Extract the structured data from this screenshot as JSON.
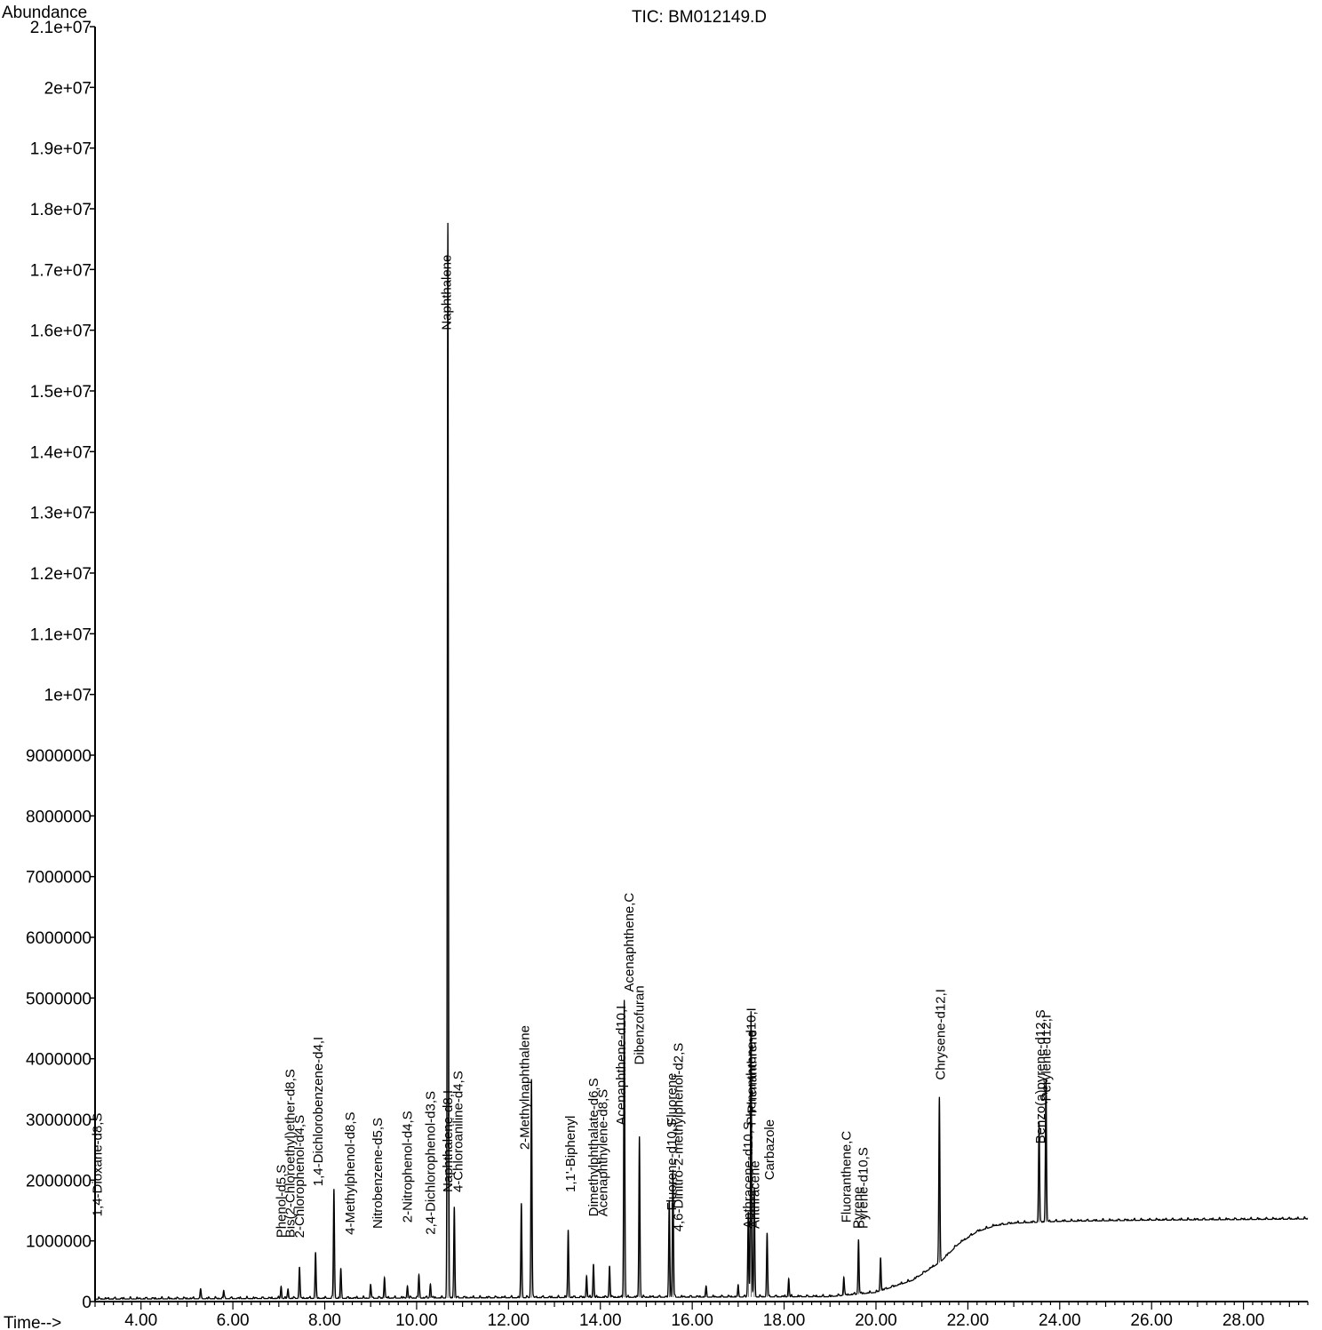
{
  "chart_data": {
    "type": "line",
    "title": "TIC: BM012149.D",
    "ylabel": "Abundance",
    "xlabel": "Time-->",
    "xlim": [
      3.0,
      29.4
    ],
    "ylim": [
      0,
      21000000
    ],
    "x_ticks": [
      4.0,
      6.0,
      8.0,
      10.0,
      12.0,
      14.0,
      16.0,
      18.0,
      20.0,
      22.0,
      24.0,
      26.0,
      28.0
    ],
    "x_tick_labels": [
      "4.00",
      "6.00",
      "8.00",
      "10.00",
      "12.00",
      "14.00",
      "16.00",
      "18.00",
      "20.00",
      "22.00",
      "24.00",
      "26.00",
      "28.00"
    ],
    "y_ticks": [
      0,
      1000000,
      2000000,
      3000000,
      4000000,
      5000000,
      6000000,
      7000000,
      8000000,
      9000000,
      10000000,
      11000000,
      12000000,
      13000000,
      14000000,
      15000000,
      16000000,
      17000000,
      18000000,
      19000000,
      20000000,
      21000000
    ],
    "y_tick_labels": [
      "0",
      "1000000",
      "2000000",
      "3000000",
      "4000000",
      "5000000",
      "6000000",
      "7000000",
      "8000000",
      "9000000",
      "1e+07",
      "1.1e+07",
      "1.2e+07",
      "1.3e+07",
      "1.4e+07",
      "1.5e+07",
      "1.6e+07",
      "1.7e+07",
      "1.8e+07",
      "1.9e+07",
      "2e+07",
      "2.1e+07"
    ],
    "grid": false,
    "baseline": [
      [
        3.0,
        40000
      ],
      [
        19.0,
        80000
      ],
      [
        20.0,
        150000
      ],
      [
        20.8,
        350000
      ],
      [
        21.4,
        650000
      ],
      [
        21.8,
        950000
      ],
      [
        22.2,
        1150000
      ],
      [
        22.6,
        1250000
      ],
      [
        23.0,
        1290000
      ],
      [
        24.0,
        1320000
      ],
      [
        26.0,
        1340000
      ],
      [
        28.0,
        1350000
      ],
      [
        29.4,
        1360000
      ]
    ],
    "series": [
      {
        "peaks": [
          {
            "rt": 5.3,
            "height": 150000
          },
          {
            "rt": 5.8,
            "height": 120000
          },
          {
            "rt": 7.05,
            "height": 200000
          },
          {
            "rt": 7.2,
            "height": 150000
          },
          {
            "rt": 7.45,
            "height": 520000
          },
          {
            "rt": 7.8,
            "height": 750000
          },
          {
            "rt": 8.2,
            "height": 1800000
          },
          {
            "rt": 8.35,
            "height": 480000
          },
          {
            "rt": 9.0,
            "height": 220000
          },
          {
            "rt": 9.3,
            "height": 340000
          },
          {
            "rt": 9.8,
            "height": 200000
          },
          {
            "rt": 10.05,
            "height": 380000
          },
          {
            "rt": 10.3,
            "height": 230000
          },
          {
            "rt": 10.68,
            "height": 17700000
          },
          {
            "rt": 10.82,
            "height": 1500000
          },
          {
            "rt": 12.28,
            "height": 1550000
          },
          {
            "rt": 12.5,
            "height": 3600000
          },
          {
            "rt": 13.3,
            "height": 1100000
          },
          {
            "rt": 13.7,
            "height": 350000
          },
          {
            "rt": 13.85,
            "height": 550000
          },
          {
            "rt": 14.2,
            "height": 520000
          },
          {
            "rt": 14.52,
            "height": 4900000
          },
          {
            "rt": 14.85,
            "height": 2650000
          },
          {
            "rt": 15.5,
            "height": 1600000
          },
          {
            "rt": 15.58,
            "height": 2100000
          },
          {
            "rt": 16.3,
            "height": 160000
          },
          {
            "rt": 17.0,
            "height": 170000
          },
          {
            "rt": 17.22,
            "height": 1400000
          },
          {
            "rt": 17.28,
            "height": 4700000
          },
          {
            "rt": 17.35,
            "height": 1800000
          },
          {
            "rt": 17.63,
            "height": 1050000
          },
          {
            "rt": 18.1,
            "height": 300000
          },
          {
            "rt": 19.3,
            "height": 300000
          },
          {
            "rt": 19.62,
            "height": 900000
          },
          {
            "rt": 20.1,
            "height": 550000
          },
          {
            "rt": 21.38,
            "height": 2700000
          },
          {
            "rt": 23.55,
            "height": 1650000
          },
          {
            "rt": 23.7,
            "height": 2350000
          }
        ]
      }
    ],
    "annotations": [
      {
        "text": "1,4-Dioxane-d8,S",
        "rt": 3.05
      },
      {
        "text": "Phenol-d5,S",
        "rt": 7.05
      },
      {
        "text": "Bis(2-Chloroethyl)ether-d8,S",
        "rt": 7.25
      },
      {
        "text": "2-Chlorophenol-d4,S",
        "rt": 7.45
      },
      {
        "text": "1,4-Dichlorobenzene-d4,I",
        "rt": 7.85
      },
      {
        "text": "4-Methylphenol-d8,S",
        "rt": 8.55
      },
      {
        "text": "Nitrobenzene-d5,S",
        "rt": 9.15
      },
      {
        "text": "2-Nitrophenol-d4,S",
        "rt": 9.8
      },
      {
        "text": "2,4-Dichlorophenol-d3,S",
        "rt": 10.3
      },
      {
        "text": "Naphthalene-d8,I",
        "rt": 10.68
      },
      {
        "text": "Naphthalene",
        "rt": 10.65
      },
      {
        "text": "4-Chloroaniline-d4,S",
        "rt": 10.9
      },
      {
        "text": "2-Methylnaphthalene",
        "rt": 12.35
      },
      {
        "text": "1,1'-Biphenyl",
        "rt": 13.35
      },
      {
        "text": "Dimethylphthalate-d6,S",
        "rt": 13.85
      },
      {
        "text": "Acenaphthylene-d8,S",
        "rt": 14.05
      },
      {
        "text": "Acenaphthene-d10,I",
        "rt": 14.45
      },
      {
        "text": "Acenaphthene,C",
        "rt": 14.62
      },
      {
        "text": "Dibenzofuran",
        "rt": 14.85
      },
      {
        "text": "Fluorene-d10,S",
        "rt": 15.55
      },
      {
        "text": "Fluorene",
        "rt": 15.55
      },
      {
        "text": "4,6-Dinitro-2-methylphenol-d2,S",
        "rt": 15.7
      },
      {
        "text": "Phenanthrene-d10,I",
        "rt": 17.28
      },
      {
        "text": "Phenanthrene",
        "rt": 17.3
      },
      {
        "text": "Anthracene-d10,S",
        "rt": 17.22
      },
      {
        "text": "Anthracene",
        "rt": 17.36
      },
      {
        "text": "Carbazole",
        "rt": 17.68
      },
      {
        "text": "Fluoranthene,C",
        "rt": 19.35
      },
      {
        "text": "Pyrene",
        "rt": 19.6
      },
      {
        "text": "Pyrene-d10,S",
        "rt": 19.72
      },
      {
        "text": "Chrysene-d12,I",
        "rt": 21.4
      },
      {
        "text": "Benzo(a)pyrene-d12,S",
        "rt": 23.58
      },
      {
        "text": "Perylene-d12,I",
        "rt": 23.7
      }
    ]
  }
}
